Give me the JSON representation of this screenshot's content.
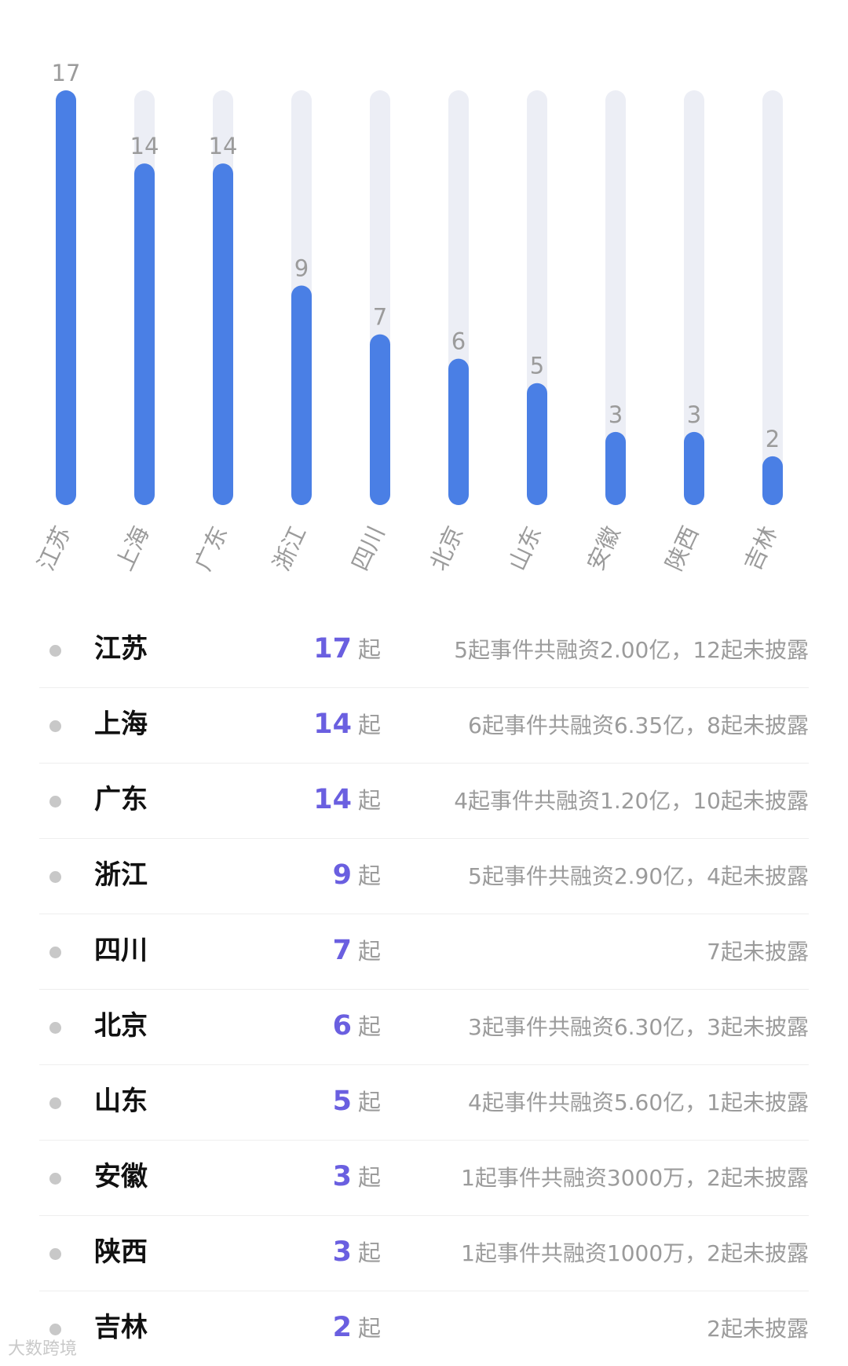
{
  "chart_data": {
    "type": "bar",
    "categories": [
      "江苏",
      "上海",
      "广东",
      "浙江",
      "四川",
      "北京",
      "山东",
      "安徽",
      "陕西",
      "吉林"
    ],
    "values": [
      17,
      14,
      14,
      9,
      7,
      6,
      5,
      3,
      3,
      2
    ],
    "ylim": [
      0,
      17
    ],
    "grid": false,
    "colors": {
      "bar": "#4a7fe5",
      "track": "#eceef5"
    }
  },
  "rows": [
    {
      "province": "江苏",
      "count": "17",
      "unit": "起",
      "desc": "5起事件共融资2.00亿，12起未披露"
    },
    {
      "province": "上海",
      "count": "14",
      "unit": "起",
      "desc": "6起事件共融资6.35亿，8起未披露"
    },
    {
      "province": "广东",
      "count": "14",
      "unit": "起",
      "desc": "4起事件共融资1.20亿，10起未披露"
    },
    {
      "province": "浙江",
      "count": "9",
      "unit": "起",
      "desc": "5起事件共融资2.90亿，4起未披露"
    },
    {
      "province": "四川",
      "count": "7",
      "unit": "起",
      "desc": "7起未披露"
    },
    {
      "province": "北京",
      "count": "6",
      "unit": "起",
      "desc": "3起事件共融资6.30亿，3起未披露"
    },
    {
      "province": "山东",
      "count": "5",
      "unit": "起",
      "desc": "4起事件共融资5.60亿，1起未披露"
    },
    {
      "province": "安徽",
      "count": "3",
      "unit": "起",
      "desc": "1起事件共融资3000万，2起未披露"
    },
    {
      "province": "陕西",
      "count": "3",
      "unit": "起",
      "desc": "1起事件共融资1000万，2起未披露"
    },
    {
      "province": "吉林",
      "count": "2",
      "unit": "起",
      "desc": "2起未披露"
    }
  ],
  "colors": {
    "count_accent": "#6a5fe0"
  },
  "watermark": "大数跨境"
}
